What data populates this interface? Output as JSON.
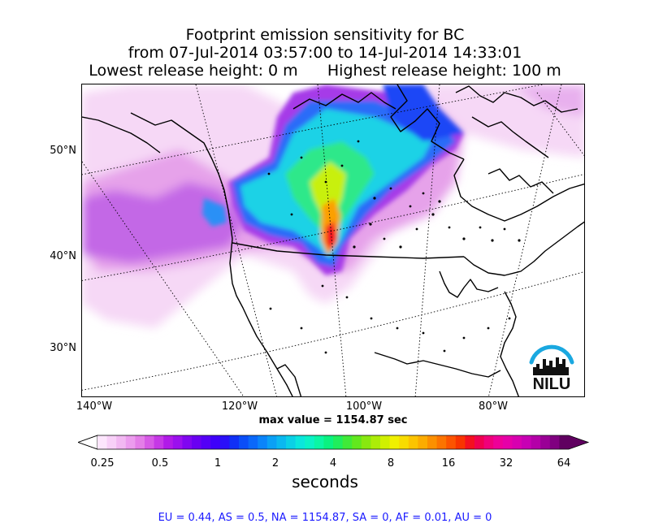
{
  "title": {
    "line1": "Footprint emission sensitivity for BC",
    "line2": "from 07-Jul-2014 03:57:00 to 14-Jul-2014 14:33:01",
    "line3": "Lowest release height: 0 m      Highest release height: 100 m"
  },
  "map": {
    "lat_labels": [
      "50°N",
      "40°N",
      "30°N"
    ],
    "lon_labels": [
      "140°W",
      "120°W",
      "100°W",
      "80°W"
    ]
  },
  "max_value": "max value = 1154.87 sec",
  "colorbar": {
    "ticks": [
      "0.25",
      "0.5",
      "1",
      "2",
      "4",
      "8",
      "16",
      "32",
      "64"
    ],
    "units": "seconds",
    "colors": [
      "#fde6fd",
      "#f8d0f8",
      "#f2b8f2",
      "#ec9cee",
      "#e47ee8",
      "#d75ae6",
      "#c638e6",
      "#b11ae8",
      "#9b10ee",
      "#8006f0",
      "#6a00f2",
      "#5400f6",
      "#3e00fa",
      "#2a10f8",
      "#1030f6",
      "#0a4ef8",
      "#0a68fa",
      "#0a84fa",
      "#0aa0f6",
      "#0ab8f0",
      "#0ad0e6",
      "#0ae6dc",
      "#0af2c6",
      "#0af6a4",
      "#0af280",
      "#20ee5c",
      "#40ea38",
      "#62e81e",
      "#88e810",
      "#acec08",
      "#d0f000",
      "#f0f000",
      "#f8dc00",
      "#fcc400",
      "#fcac00",
      "#fc9000",
      "#fc7400",
      "#fc5400",
      "#f83400",
      "#f41020",
      "#f00050",
      "#f0007a",
      "#ee0098",
      "#e600a8",
      "#d800b0",
      "#c800b4",
      "#b400a8",
      "#9a0096",
      "#800080",
      "#600060"
    ],
    "min_color": "#ffffff",
    "max_color": "#600060"
  },
  "regions": "EU = 0.44,  AS = 0.5,  NA = 1154.87,  SA = 0,  AF = 0.01,  AU = 0",
  "logo": {
    "text": "NILU",
    "arc_color": "#1aa8e0"
  }
}
